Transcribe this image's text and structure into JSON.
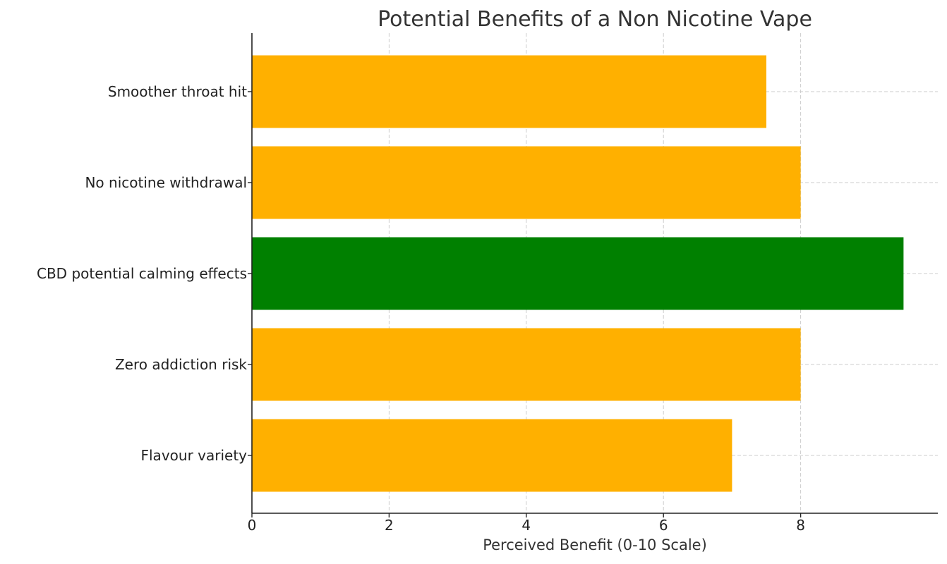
{
  "chart_data": {
    "type": "bar",
    "orientation": "horizontal",
    "title": "Potential Benefits of a Non Nicotine Vape",
    "xlabel": "Perceived Benefit (0-10 Scale)",
    "ylabel": "",
    "categories": [
      "Smoother throat hit",
      "No nicotine withdrawal",
      "CBD potential calming effects",
      "Zero addiction risk",
      "Flavour variety"
    ],
    "values": [
      7.5,
      8,
      9.5,
      8,
      7
    ],
    "colors": [
      "#FFB000",
      "#FFB000",
      "#008000",
      "#FFB000",
      "#FFB000"
    ],
    "xlim": [
      0,
      10
    ],
    "xticks": [
      "0",
      "2",
      "4",
      "6",
      "8"
    ],
    "grid": true
  }
}
